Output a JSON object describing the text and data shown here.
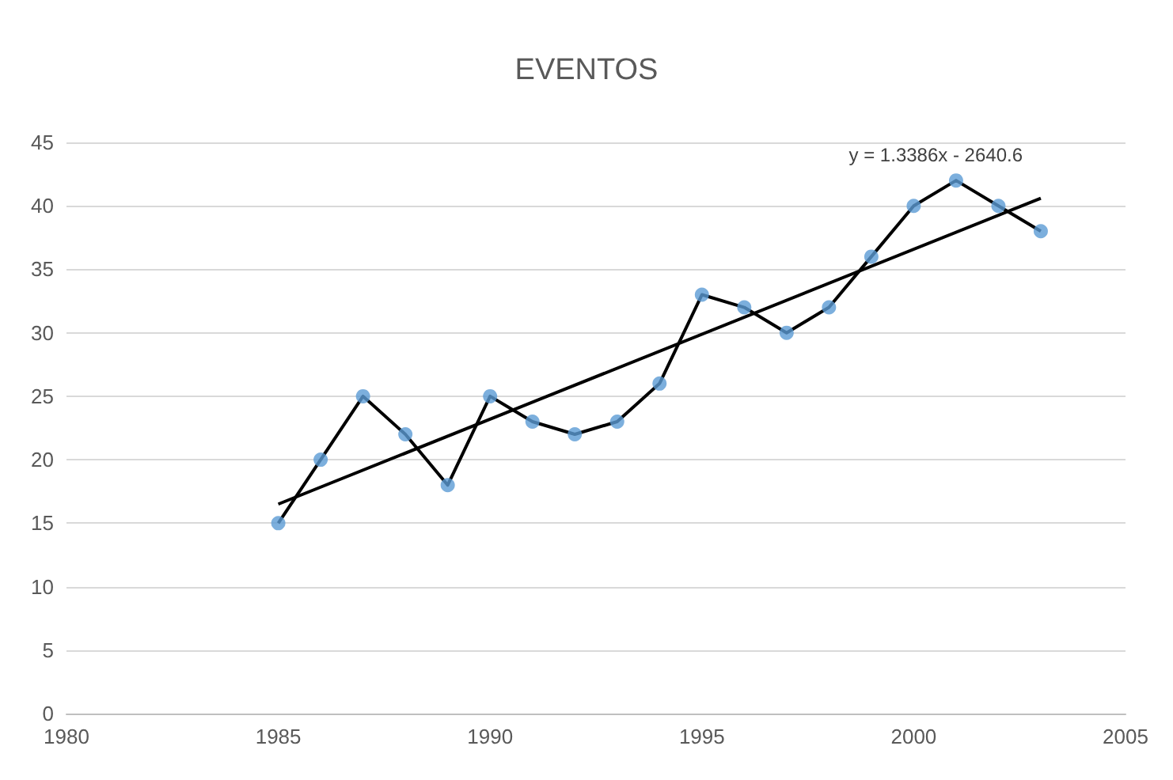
{
  "chart_data": {
    "type": "line",
    "title": "EVENTOS",
    "x": [
      1985,
      1986,
      1987,
      1988,
      1989,
      1990,
      1991,
      1992,
      1993,
      1994,
      1995,
      1996,
      1997,
      1998,
      1999,
      2000,
      2001,
      2002,
      2003
    ],
    "series": [
      {
        "color": "#000000",
        "marker": "none",
        "values": [
          15,
          20,
          25,
          22,
          18,
          25,
          23,
          22,
          23,
          26,
          33,
          32,
          30,
          32,
          36,
          40,
          42,
          40,
          38
        ]
      },
      {
        "type": "scatter",
        "color": "#5b9bd5",
        "marker": "circle",
        "values": [
          15,
          20,
          25,
          22,
          18,
          25,
          23,
          22,
          23,
          26,
          33,
          32,
          30,
          32,
          36,
          40,
          42,
          40,
          38
        ]
      },
      {
        "type": "line",
        "color": "#000000",
        "marker": "none",
        "x": [
          1985,
          2003
        ],
        "values": [
          16.5,
          40.6
        ]
      }
    ],
    "annotations": [
      "y = 1.3386x - 2640.6"
    ],
    "xlim": [
      1980,
      2005
    ],
    "xticks": [
      1980,
      1985,
      1990,
      1995,
      2000,
      2005
    ],
    "ylim": [
      0,
      45
    ],
    "yticks": [
      0,
      5,
      10,
      15,
      20,
      25,
      30,
      35,
      40,
      45
    ],
    "grid": "y"
  }
}
